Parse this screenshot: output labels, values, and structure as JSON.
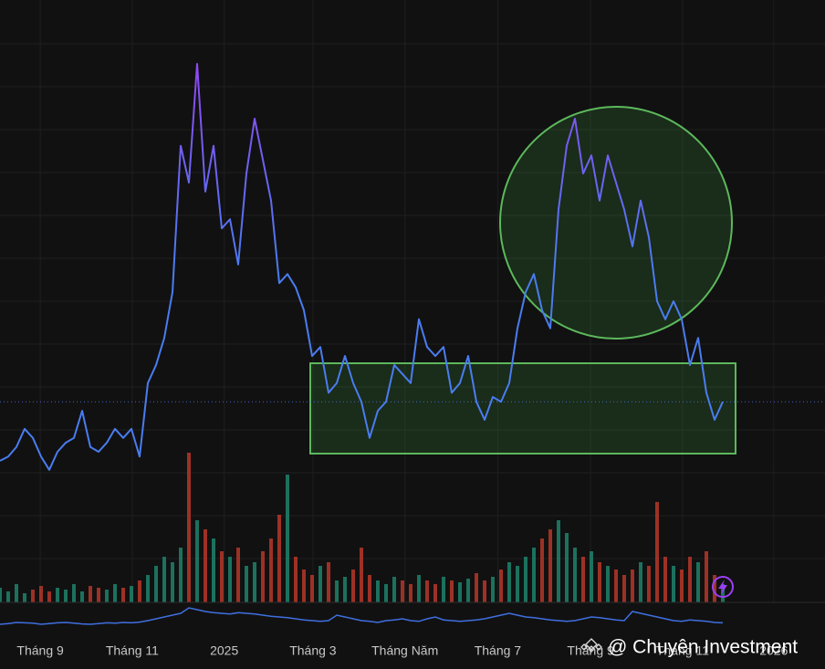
{
  "chart_data": {
    "type": "line",
    "values": [
      23.5,
      24.2,
      25.8,
      28.8,
      27.3,
      24.2,
      22.0,
      25.0,
      26.5,
      27.3,
      31.8,
      25.8,
      25.0,
      26.5,
      28.8,
      27.3,
      28.8,
      24.2,
      36.4,
      39.4,
      43.9,
      51.5,
      75.8,
      69.7,
      89.4,
      68.2,
      75.8,
      62.1,
      63.6,
      56.1,
      71.2,
      80.3,
      73.5,
      66.7,
      53.0,
      54.5,
      52.3,
      48.5,
      40.9,
      42.4,
      34.8,
      36.4,
      40.9,
      36.4,
      33.3,
      27.3,
      31.8,
      33.3,
      39.4,
      37.9,
      36.4,
      47.0,
      42.4,
      40.9,
      42.4,
      34.8,
      36.4,
      40.9,
      33.3,
      30.3,
      34.1,
      33.3,
      36.4,
      45.5,
      51.5,
      54.5,
      48.5,
      45.5,
      65.2,
      75.8,
      80.3,
      71.2,
      74.2,
      66.7,
      74.2,
      69.7,
      65.2,
      59.1,
      66.7,
      60.6,
      50.0,
      47.0,
      50.0,
      47.0,
      39.4,
      43.9,
      34.8,
      30.3,
      33.3
    ],
    "volume": [
      8,
      6,
      10,
      5,
      7,
      9,
      6,
      8,
      7,
      10,
      6,
      9,
      8,
      7,
      10,
      8,
      9,
      12,
      15,
      20,
      25,
      22,
      30,
      82,
      45,
      40,
      35,
      28,
      25,
      30,
      20,
      22,
      28,
      35,
      48,
      70,
      25,
      18,
      15,
      20,
      22,
      12,
      14,
      18,
      30,
      15,
      12,
      10,
      14,
      12,
      10,
      15,
      12,
      10,
      14,
      12,
      11,
      13,
      16,
      12,
      14,
      18,
      22,
      20,
      25,
      30,
      35,
      40,
      45,
      38,
      30,
      25,
      28,
      22,
      20,
      18,
      15,
      18,
      22,
      20,
      55,
      25,
      20,
      18,
      25,
      22,
      28,
      15,
      10
    ],
    "indicator": [
      40,
      42,
      45,
      44,
      43,
      40,
      42,
      44,
      45,
      43,
      41,
      40,
      42,
      44,
      43,
      45,
      44,
      46,
      50,
      55,
      60,
      65,
      70,
      85,
      80,
      75,
      72,
      70,
      68,
      72,
      70,
      68,
      65,
      62,
      60,
      58,
      55,
      52,
      50,
      48,
      50,
      65,
      60,
      55,
      50,
      48,
      45,
      50,
      52,
      55,
      50,
      48,
      55,
      60,
      52,
      50,
      48,
      50,
      52,
      55,
      60,
      65,
      70,
      65,
      60,
      58,
      55,
      52,
      50,
      48,
      50,
      55,
      60,
      58,
      55,
      52,
      50,
      75,
      70,
      65,
      60,
      55,
      50,
      48,
      52,
      50,
      48,
      45,
      44
    ],
    "color_low": "#4a7cf0",
    "color_high": "#9b3ff5",
    "up_color": "#1f8a70",
    "down_color": "#c0392b",
    "indicator_color": "#3f6fe0",
    "xlim": [
      0,
      100
    ],
    "ylim": [
      0,
      100
    ],
    "vlim": [
      0,
      100
    ],
    "ilim": [
      0,
      100
    ],
    "xticks": [
      {
        "value": 4.9,
        "label": "Tháng 9"
      },
      {
        "value": 16.1,
        "label": "Tháng 11"
      },
      {
        "value": 27.3,
        "label": "2025"
      },
      {
        "value": 38.1,
        "label": "Tháng 3"
      },
      {
        "value": 49.3,
        "label": "Tháng Năm"
      },
      {
        "value": 60.6,
        "label": "Tháng 7"
      },
      {
        "value": 71.9,
        "label": "Tháng 9"
      },
      {
        "value": 83.1,
        "label": "Tháng 11"
      },
      {
        "value": 94.2,
        "label": "2026"
      }
    ],
    "grid": true,
    "watermark": "@ Chuyên Investment"
  }
}
